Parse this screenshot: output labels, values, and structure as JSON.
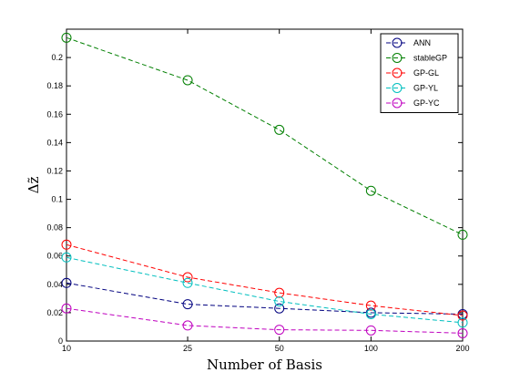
{
  "chart_data": {
    "type": "line",
    "x": [
      10,
      25,
      50,
      100,
      200
    ],
    "xtick_labels": [
      "10",
      "25",
      "50",
      "100",
      "200"
    ],
    "xlabel": "Number of Basis",
    "ylabel": "Δz̃",
    "ylim": [
      0,
      0.22
    ],
    "yticks": [
      0,
      0.02,
      0.04,
      0.06,
      0.08,
      0.1,
      0.12,
      0.14,
      0.16,
      0.18,
      0.2
    ],
    "ytick_labels": [
      "0",
      "0.02",
      "0.04",
      "0.06",
      "0.08",
      "0.1",
      "0.12",
      "0.14",
      "0.16",
      "0.18",
      "0.2"
    ],
    "grid": false,
    "legend_position": "top-right",
    "series": [
      {
        "name": "ANN",
        "color": "#00007f",
        "values": [
          0.041,
          0.026,
          0.023,
          0.02,
          0.019
        ]
      },
      {
        "name": "stableGP",
        "color": "#007f00",
        "values": [
          0.214,
          0.184,
          0.149,
          0.106,
          0.075
        ]
      },
      {
        "name": "GP-GL",
        "color": "#ff0000",
        "values": [
          0.068,
          0.045,
          0.034,
          0.025,
          0.018
        ]
      },
      {
        "name": "GP-YL",
        "color": "#00bfbf",
        "values": [
          0.059,
          0.041,
          0.028,
          0.019,
          0.013
        ]
      },
      {
        "name": "GP-YC",
        "color": "#bf00bf",
        "values": [
          0.023,
          0.011,
          0.008,
          0.0075,
          0.0055
        ]
      }
    ]
  }
}
